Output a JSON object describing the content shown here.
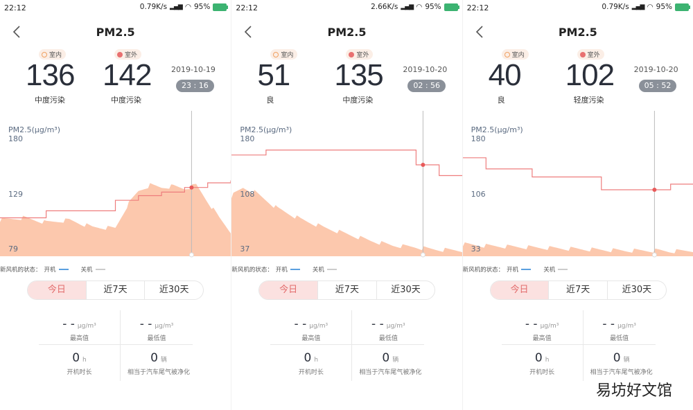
{
  "panels": [
    {
      "status": {
        "time": "22:12",
        "speed": "0.79K/s",
        "battery": "95%"
      },
      "title": "PM2.5",
      "indoor": {
        "tag": "室内",
        "value": "136",
        "level": "中度污染"
      },
      "outdoor": {
        "tag": "室外",
        "value": "142",
        "level": "中度污染"
      },
      "date": "2019-10-19",
      "time": "23 : 16",
      "axis_label": "PM2.5(μg/m³)",
      "ticks": [
        "180",
        "129",
        "79"
      ]
    },
    {
      "status": {
        "time": "22:12",
        "speed": "2.66K/s",
        "battery": "95%"
      },
      "title": "PM2.5",
      "indoor": {
        "tag": "室内",
        "value": "51",
        "level": "良"
      },
      "outdoor": {
        "tag": "室外",
        "value": "135",
        "level": "中度污染"
      },
      "date": "2019-10-20",
      "time": "02 : 56",
      "axis_label": "PM2.5(μg/m³)",
      "ticks": [
        "180",
        "108",
        "37"
      ]
    },
    {
      "status": {
        "time": "22:12",
        "speed": "0.79K/s",
        "battery": "95%"
      },
      "title": "PM2.5",
      "indoor": {
        "tag": "室内",
        "value": "40",
        "level": "良"
      },
      "outdoor": {
        "tag": "室外",
        "value": "102",
        "level": "轻度污染"
      },
      "date": "2019-10-20",
      "time": "05 : 52",
      "axis_label": "PM2.5(μg/m³)",
      "ticks": [
        "180",
        "106",
        "33"
      ]
    }
  ],
  "legend": {
    "prefix": "新风机的状态：",
    "on": "开机",
    "off": "关机"
  },
  "tabs": [
    "今日",
    "近7天",
    "近30天"
  ],
  "stats": {
    "max": {
      "value": "- -",
      "unit": "μg/m³",
      "label": "最高值"
    },
    "min": {
      "value": "- -",
      "unit": "μg/m³",
      "label": "最低值"
    },
    "runtime": {
      "value": "0",
      "unit": "h",
      "label": "开机时长"
    },
    "cars": {
      "value": "0",
      "unit": "辆",
      "label": "相当于汽车尾气被净化"
    }
  },
  "watermark": "易坊好文馆",
  "colors": {
    "indoor_fill": "#fcc8ad",
    "outdoor_line": "#ee7d7d",
    "marker": "#e85a5a",
    "active_tab_bg": "#fbe1e0",
    "active_tab_text": "#e26a6a",
    "time_badge": "#8a9099"
  },
  "chart_data": [
    {
      "type": "area",
      "ylabel": "PM2.5(μg/m³)",
      "ylim": [
        79,
        180
      ],
      "x": [
        0,
        0.1,
        0.2,
        0.3,
        0.4,
        0.5,
        0.55,
        0.6,
        0.65,
        0.7,
        0.75,
        0.8,
        0.85,
        0.9,
        0.95,
        1.0
      ],
      "series": [
        {
          "values": [
            110,
            112,
            108,
            110,
            104,
            103,
            122,
            135,
            140,
            138,
            139,
            137,
            140,
            126,
            112,
            100
          ]
        },
        {
          "values": [
            112,
            112,
            118,
            118,
            118,
            127,
            127,
            131,
            131,
            134,
            134,
            138,
            138,
            142,
            142,
            144
          ]
        }
      ]
    },
    {
      "type": "area",
      "ylabel": "PM2.5(μg/m³)",
      "ylim": [
        37,
        180
      ],
      "x": [
        0,
        0.05,
        0.1,
        0.15,
        0.2,
        0.3,
        0.4,
        0.5,
        0.6,
        0.7,
        0.8,
        0.85,
        0.9,
        1.0
      ],
      "series": [
        {
          "values": [
            110,
            120,
            115,
            105,
            95,
            82,
            72,
            64,
            56,
            50,
            48,
            46,
            45,
            44
          ]
        },
        {
          "values": [
            160,
            160,
            160,
            166,
            166,
            166,
            166,
            166,
            166,
            166,
            148,
            148,
            135,
            135
          ]
        }
      ]
    },
    {
      "type": "area",
      "ylabel": "PM2.5(μg/m³)",
      "ylim": [
        33,
        180
      ],
      "x": [
        0,
        0.1,
        0.2,
        0.3,
        0.4,
        0.5,
        0.6,
        0.7,
        0.8,
        0.85,
        0.9,
        1.0
      ],
      "series": [
        {
          "values": [
            48,
            46,
            45,
            44,
            43,
            42,
            41,
            40,
            40,
            40,
            39,
            40
          ]
        },
        {
          "values": [
            156,
            142,
            142,
            132,
            132,
            132,
            116,
            116,
            116,
            116,
            123,
            123
          ]
        }
      ]
    }
  ]
}
